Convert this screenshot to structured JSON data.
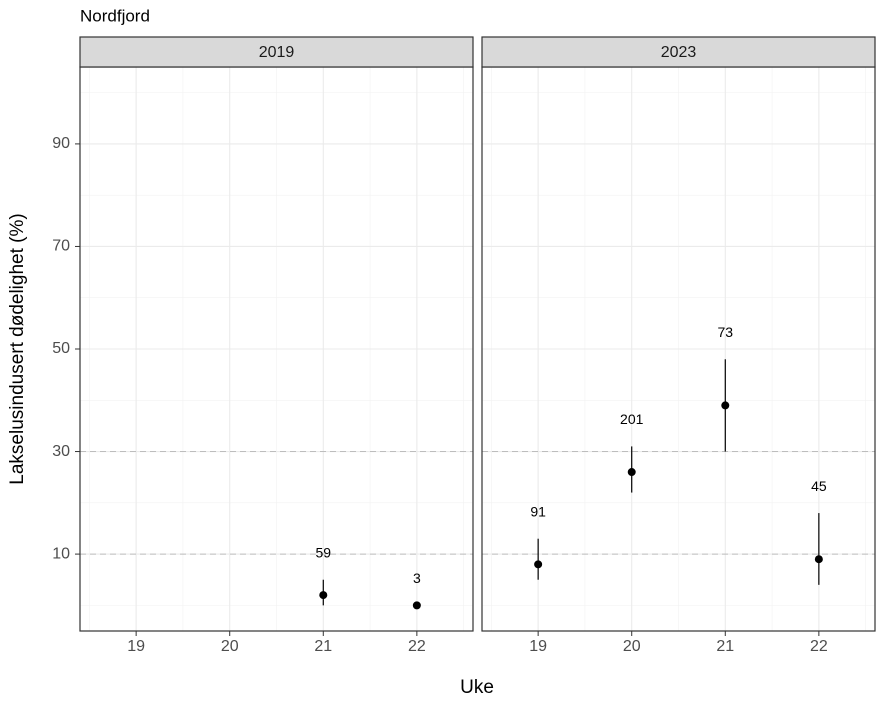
{
  "chart_data": {
    "type": "scatter",
    "title": "Nordfjord",
    "x_label": "Uke",
    "y_label": "Lakselusindusert dødelighet (%)",
    "xlim": [
      18.4,
      22.6
    ],
    "xticks": [
      19,
      20,
      21,
      22
    ],
    "ylim": [
      -5,
      105
    ],
    "yticks": [
      10,
      30,
      50,
      70,
      90
    ],
    "grid": true,
    "hlines": [
      10,
      30
    ],
    "color": "#000000",
    "facets": [
      {
        "title": "2019",
        "x": [
          21,
          22
        ],
        "values": [
          2,
          0
        ],
        "lower": [
          0,
          0
        ],
        "upper": [
          5,
          0
        ],
        "n": [
          59,
          3
        ]
      },
      {
        "title": "2023",
        "x": [
          19,
          20,
          21,
          22
        ],
        "values": [
          8,
          26,
          39,
          9
        ],
        "lower": [
          5,
          22,
          30,
          4
        ],
        "upper": [
          13,
          31,
          48,
          18
        ],
        "n": [
          91,
          201,
          73,
          45
        ]
      }
    ]
  }
}
